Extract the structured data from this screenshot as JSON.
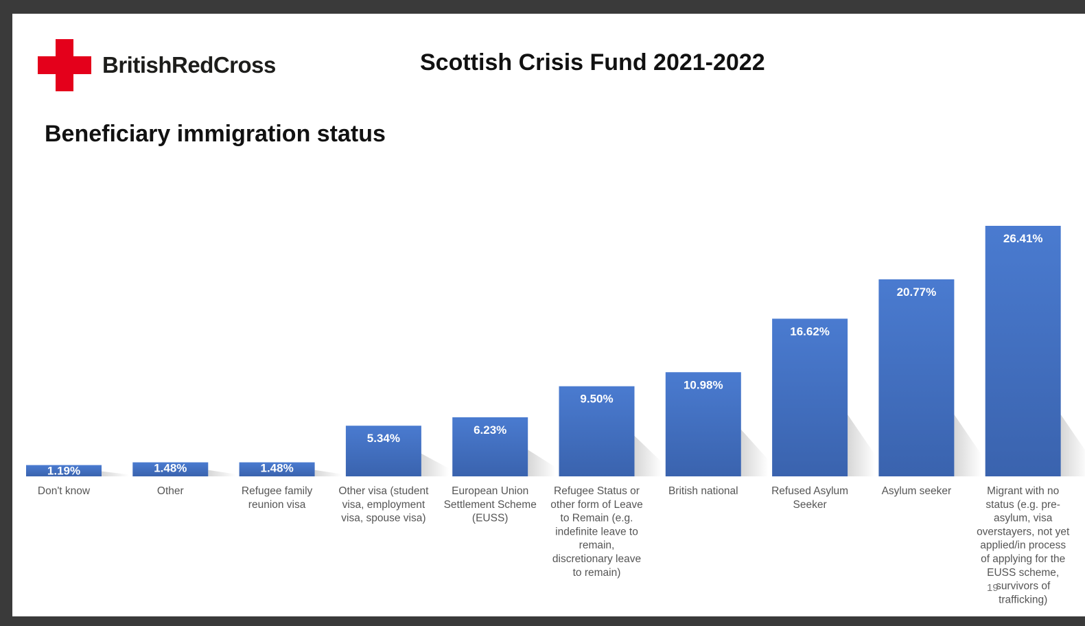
{
  "brand": {
    "name": "BritishRedCross",
    "logo": "red-cross-logo"
  },
  "slide": {
    "title": "Scottish Crisis Fund 2021-2022",
    "page_number": "19"
  },
  "colors": {
    "bar": "#4472c4",
    "bar_top": "#4a7bd0",
    "bar_bottom": "#3a63ae",
    "brand_red": "#e4001b"
  },
  "chart_data": {
    "type": "bar",
    "title": "Beneficiary immigration status",
    "xlabel": "",
    "ylabel": "",
    "ylim": [
      0,
      30
    ],
    "grid": false,
    "legend": "none",
    "categories": [
      [
        "Don't know"
      ],
      [
        "Other"
      ],
      [
        "Refugee family",
        "reunion visa"
      ],
      [
        "Other visa (student",
        "visa, employment",
        "visa, spouse visa)"
      ],
      [
        "European Union",
        "Settlement Scheme",
        "(EUSS)"
      ],
      [
        "Refugee Status or",
        "other form of Leave",
        "to Remain (e.g.",
        "indefinite leave to",
        "remain,",
        "discretionary leave",
        "to remain)"
      ],
      [
        "British national"
      ],
      [
        "Refused Asylum",
        "Seeker"
      ],
      [
        "Asylum seeker"
      ],
      [
        "Migrant with no",
        "status (e.g. pre-",
        "asylum, visa",
        "overstayers, not yet",
        "applied/in process",
        "of applying for the",
        "EUSS scheme,",
        "survivors of",
        "trafficking)"
      ]
    ],
    "values": [
      1.19,
      1.48,
      1.48,
      5.34,
      6.23,
      9.5,
      10.98,
      16.62,
      20.77,
      26.41
    ],
    "data_labels": [
      "1.19%",
      "1.48%",
      "1.48%",
      "5.34%",
      "6.23%",
      "9.50%",
      "10.98%",
      "16.62%",
      "20.77%",
      "26.41%"
    ]
  }
}
